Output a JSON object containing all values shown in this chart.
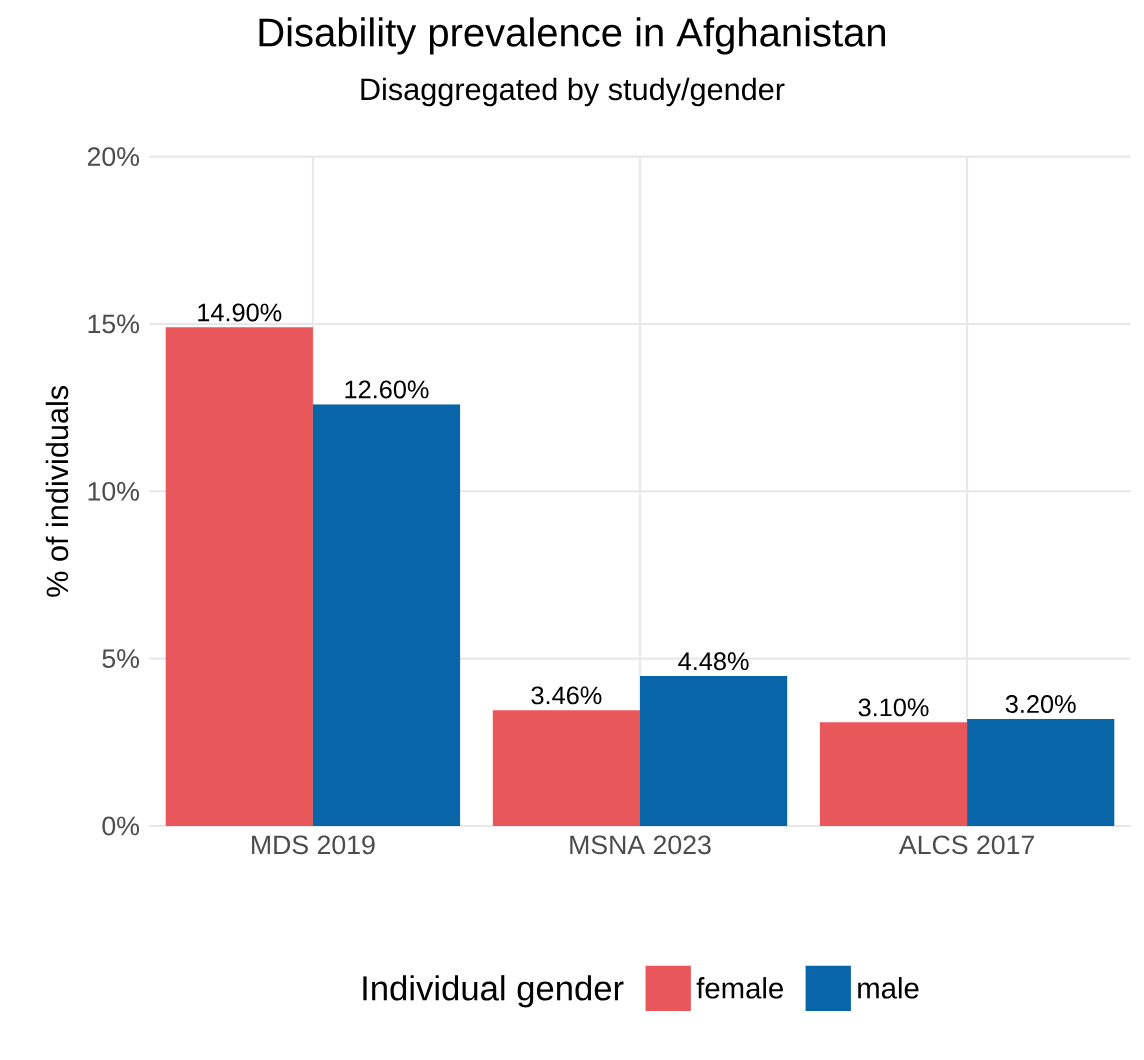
{
  "chart_data": {
    "type": "bar",
    "title": "Disability prevalence in Afghanistan",
    "subtitle": "Disaggregated by study/gender",
    "ylabel": "% of individuals",
    "legend_title": "Individual gender",
    "categories": [
      "MDS 2019",
      "MSNA 2023",
      "ALCS 2017"
    ],
    "series": [
      {
        "name": "female",
        "color": "#e8575a",
        "values": [
          14.9,
          3.46,
          3.1
        ],
        "value_labels": [
          "14.90%",
          "3.46%",
          "3.10%"
        ]
      },
      {
        "name": "male",
        "color": "#0866a8",
        "values": [
          12.6,
          4.48,
          3.2
        ],
        "value_labels": [
          "12.60%",
          "4.48%",
          "3.20%"
        ]
      }
    ],
    "ylim": [
      0,
      20
    ],
    "yticks": [
      {
        "value": 0,
        "label": "0%"
      },
      {
        "value": 5,
        "label": "5%"
      },
      {
        "value": 10,
        "label": "10%"
      },
      {
        "value": 15,
        "label": "15%"
      },
      {
        "value": 20,
        "label": "20%"
      }
    ],
    "grid": true,
    "legend": "bottom"
  }
}
